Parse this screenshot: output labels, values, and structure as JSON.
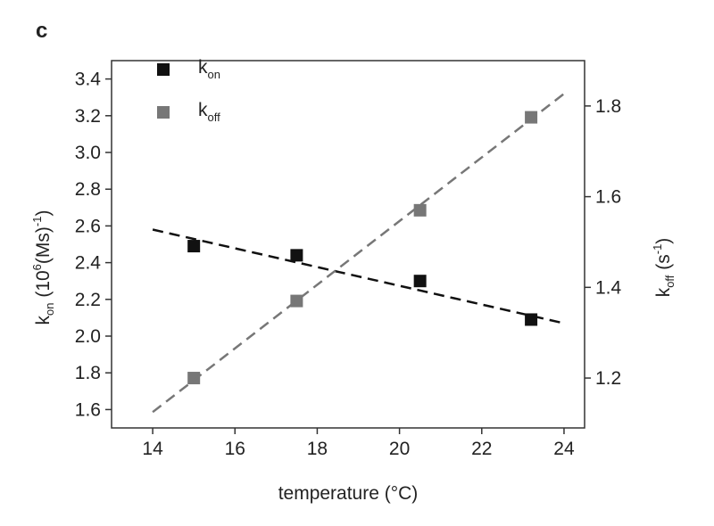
{
  "chart_data": {
    "type": "scatter",
    "panel_label": "c",
    "xlabel": "temperature (°C)",
    "ylabel_parts": [
      "k",
      "on",
      " (10",
      "6",
      "(Ms)",
      "-1",
      ")"
    ],
    "y2label_parts": [
      "k",
      "off",
      " (s",
      "-1",
      ")"
    ],
    "xlim": [
      13,
      24.5
    ],
    "xticks": [
      14,
      16,
      18,
      20,
      22,
      24
    ],
    "ylim": [
      1.5,
      3.5
    ],
    "yticks": [
      1.6,
      1.8,
      {
        "value": 2,
        "label": "2.0"
      },
      2.2,
      2.4,
      2.6,
      2.8,
      {
        "value": 3,
        "label": "3.0"
      },
      3.2,
      3.4
    ],
    "y2lim": [
      1.09,
      1.9
    ],
    "y2ticks": [
      1.2,
      1.4,
      1.6,
      1.8
    ],
    "legend": "upper left",
    "series": [
      {
        "name": "k",
        "subscript": "on",
        "color": "#111111",
        "x": [
          15,
          17.5,
          20.5,
          23.2
        ],
        "values": [
          2.49,
          2.44,
          2.3,
          2.09
        ]
      },
      {
        "name": "k",
        "subscript": "off",
        "color": "#777777",
        "axis": "y2",
        "x": [
          15,
          17.5,
          20.5,
          23.2
        ],
        "values": [
          1.2,
          1.37,
          1.57,
          1.775
        ]
      },
      {
        "type": "line",
        "color": "#111111",
        "x": [
          14,
          24
        ],
        "values": [
          2.58,
          2.07
        ]
      },
      {
        "type": "line",
        "color": "#777777",
        "axis": "y2",
        "x": [
          14,
          24
        ],
        "values": [
          1.125,
          1.827
        ]
      }
    ]
  }
}
